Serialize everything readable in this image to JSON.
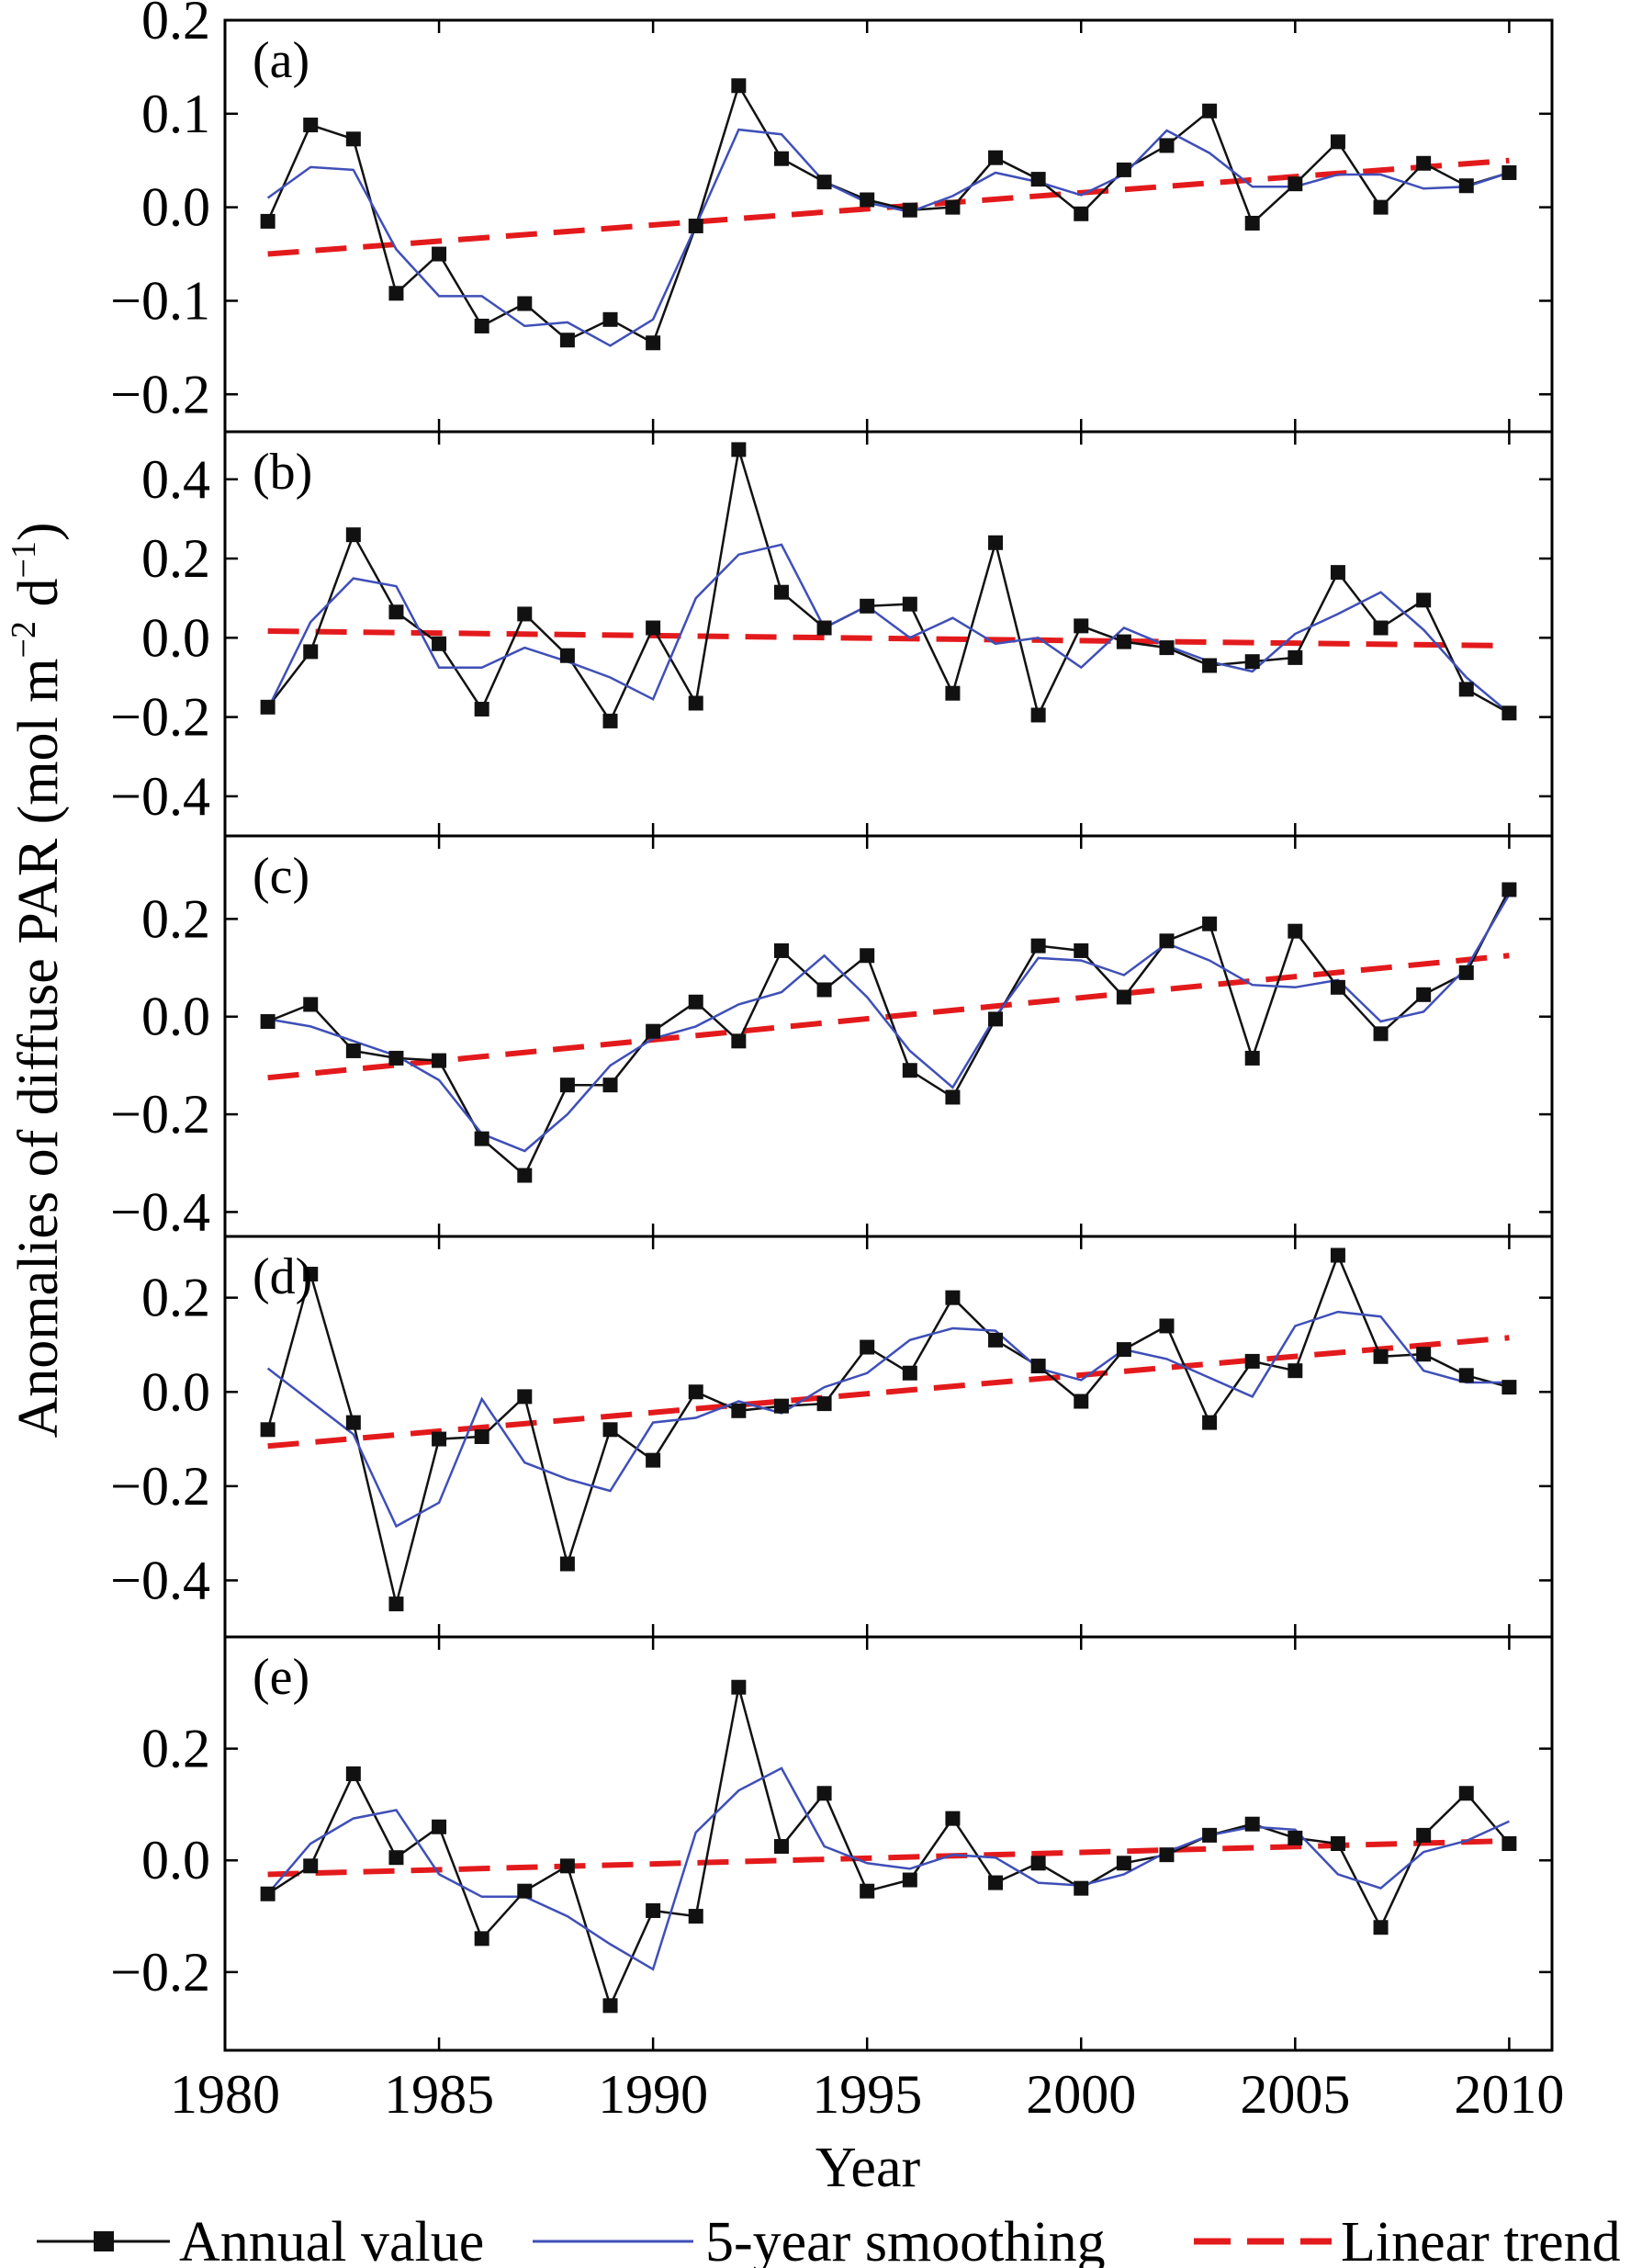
{
  "chart_data": {
    "type": "line",
    "xlabel": "Year",
    "ylabel": "Anomalies of diffuse PAR (mol m",
    "ylabel_sup1": "−2",
    "ylabel_mid": " d",
    "ylabel_sup2": "−1",
    "ylabel_end": ")",
    "x_ticks": [
      1980,
      1985,
      1990,
      1995,
      2000,
      2005,
      2010
    ],
    "xlim": [
      1980,
      2011
    ],
    "legend": {
      "position": "bottom",
      "entries": [
        {
          "label": "Annual value",
          "style": "black line with square markers"
        },
        {
          "label": "5-year smoothing",
          "style": "blue line"
        },
        {
          "label": "Linear trend",
          "style": "red dashed line"
        }
      ]
    },
    "colors": {
      "annual": "#111111",
      "smoothing": "#3f4fb8",
      "trend": "#e31a1c"
    },
    "x": [
      1981,
      1982,
      1983,
      1984,
      1985,
      1986,
      1987,
      1988,
      1989,
      1990,
      1991,
      1992,
      1993,
      1994,
      1995,
      1996,
      1997,
      1998,
      1999,
      2000,
      2001,
      2002,
      2003,
      2004,
      2005,
      2006,
      2007,
      2008,
      2009,
      2010
    ],
    "panels": [
      {
        "label": "(a)",
        "ylim": [
          -0.24,
          0.2
        ],
        "y_ticks": [
          -0.2,
          -0.1,
          0.0,
          0.1,
          0.2
        ],
        "y_tick_labels": [
          "−0.2",
          "−0.1",
          "0.0",
          "0.1",
          "0.2"
        ],
        "annual": [
          -0.015,
          0.088,
          0.073,
          -0.092,
          -0.05,
          -0.127,
          -0.103,
          -0.142,
          -0.12,
          -0.145,
          -0.02,
          0.13,
          0.052,
          0.027,
          0.008,
          -0.003,
          0.0,
          0.053,
          0.03,
          -0.007,
          0.04,
          0.066,
          0.103,
          -0.017,
          0.025,
          0.07,
          0.0,
          0.047,
          0.023,
          0.037
        ],
        "smoothing": [
          0.01,
          0.043,
          0.04,
          -0.045,
          -0.095,
          -0.095,
          -0.127,
          -0.123,
          -0.148,
          -0.12,
          -0.02,
          0.083,
          0.078,
          0.027,
          0.005,
          -0.005,
          0.012,
          0.037,
          0.027,
          0.013,
          0.035,
          0.082,
          0.058,
          0.022,
          0.022,
          0.035,
          0.035,
          0.02,
          0.022,
          0.037
        ],
        "trend": [
          -0.05,
          0.05
        ]
      },
      {
        "label": "(b)",
        "ylim": [
          -0.5,
          0.52
        ],
        "y_ticks": [
          -0.4,
          -0.2,
          0.0,
          0.2,
          0.4
        ],
        "y_tick_labels": [
          "−0.4",
          "−0.2",
          "0.0",
          "0.2",
          "0.4"
        ],
        "annual": [
          -0.175,
          -0.035,
          0.26,
          0.065,
          -0.015,
          -0.18,
          0.06,
          -0.045,
          -0.21,
          0.025,
          -0.165,
          0.475,
          0.115,
          0.025,
          0.08,
          0.085,
          -0.14,
          0.24,
          -0.195,
          0.03,
          -0.01,
          -0.025,
          -0.07,
          -0.06,
          -0.05,
          0.165,
          0.025,
          0.095,
          -0.13,
          -0.19
        ],
        "smoothing": [
          -0.18,
          0.04,
          0.15,
          0.13,
          -0.075,
          -0.075,
          -0.025,
          -0.06,
          -0.1,
          -0.155,
          0.1,
          0.21,
          0.235,
          0.025,
          0.08,
          0.0,
          0.05,
          -0.015,
          0.0,
          -0.075,
          0.025,
          -0.02,
          -0.06,
          -0.085,
          0.01,
          0.06,
          0.115,
          0.02,
          -0.1,
          -0.19
        ],
        "trend": [
          0.017,
          -0.02
        ]
      },
      {
        "label": "(c)",
        "ylim": [
          -0.45,
          0.37
        ],
        "y_ticks": [
          -0.4,
          -0.2,
          0.0,
          0.2
        ],
        "y_tick_labels": [
          "−0.4",
          "−0.2",
          "0.0",
          "0.2"
        ],
        "annual": [
          -0.01,
          0.025,
          -0.07,
          -0.085,
          -0.09,
          -0.25,
          -0.325,
          -0.14,
          -0.14,
          -0.03,
          0.03,
          -0.05,
          0.135,
          0.055,
          0.125,
          -0.11,
          -0.165,
          -0.005,
          0.145,
          0.135,
          0.04,
          0.155,
          0.19,
          -0.085,
          0.175,
          0.06,
          -0.035,
          0.045,
          0.09,
          0.26
        ],
        "smoothing": [
          -0.005,
          -0.02,
          -0.05,
          -0.08,
          -0.13,
          -0.24,
          -0.275,
          -0.2,
          -0.1,
          -0.045,
          -0.02,
          0.025,
          0.05,
          0.125,
          0.04,
          -0.07,
          -0.145,
          0.0,
          0.12,
          0.115,
          0.085,
          0.15,
          0.115,
          0.065,
          0.06,
          0.075,
          -0.01,
          0.01,
          0.1,
          0.25
        ],
        "trend": [
          -0.125,
          0.125
        ]
      },
      {
        "label": "(d)",
        "ylim": [
          -0.52,
          0.33
        ],
        "y_ticks": [
          -0.4,
          -0.2,
          0.0,
          0.2
        ],
        "y_tick_labels": [
          "−0.4",
          "−0.2",
          "0.0",
          "0.2"
        ],
        "annual": [
          -0.08,
          0.25,
          -0.065,
          -0.45,
          -0.1,
          -0.095,
          -0.01,
          -0.365,
          -0.08,
          -0.145,
          0.0,
          -0.04,
          -0.03,
          -0.025,
          0.095,
          0.04,
          0.2,
          0.11,
          0.055,
          -0.02,
          0.09,
          0.14,
          -0.065,
          0.065,
          0.045,
          0.29,
          0.075,
          0.08,
          0.035,
          0.01
        ],
        "smoothing": [
          0.05,
          -0.02,
          -0.09,
          -0.285,
          -0.235,
          -0.015,
          -0.15,
          -0.185,
          -0.21,
          -0.065,
          -0.055,
          -0.02,
          -0.045,
          0.01,
          0.04,
          0.11,
          0.135,
          0.13,
          0.05,
          0.025,
          0.09,
          0.07,
          0.03,
          -0.01,
          0.14,
          0.17,
          0.16,
          0.045,
          0.02,
          0.02
        ],
        "trend": [
          -0.115,
          0.115
        ]
      },
      {
        "label": "(e)",
        "ylim": [
          -0.34,
          0.4
        ],
        "y_ticks": [
          -0.2,
          0.0,
          0.2
        ],
        "y_tick_labels": [
          "−0.2",
          "0.0",
          "0.2"
        ],
        "annual": [
          -0.06,
          -0.01,
          0.155,
          0.005,
          0.06,
          -0.14,
          -0.055,
          -0.01,
          -0.26,
          -0.09,
          -0.1,
          0.31,
          0.025,
          0.12,
          -0.055,
          -0.035,
          0.075,
          -0.04,
          -0.005,
          -0.05,
          -0.005,
          0.01,
          0.045,
          0.065,
          0.04,
          0.03,
          -0.12,
          0.045,
          0.12,
          0.03
        ],
        "smoothing": [
          -0.06,
          0.03,
          0.075,
          0.09,
          -0.025,
          -0.065,
          -0.065,
          -0.1,
          -0.15,
          -0.195,
          0.05,
          0.125,
          0.165,
          0.025,
          -0.005,
          -0.015,
          0.01,
          0.005,
          -0.04,
          -0.045,
          -0.025,
          0.015,
          0.045,
          0.06,
          0.055,
          -0.025,
          -0.05,
          0.015,
          0.035,
          0.07
        ],
        "trend": [
          -0.025,
          0.035
        ]
      }
    ]
  }
}
